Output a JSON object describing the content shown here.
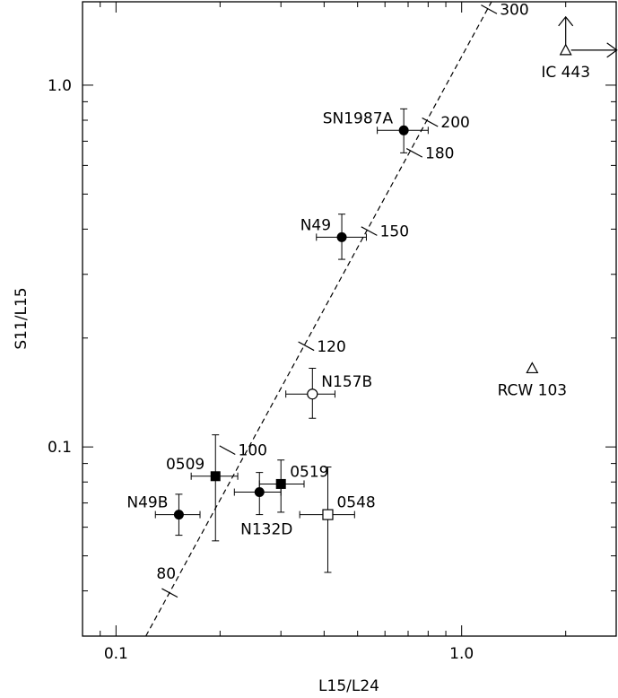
{
  "chart_data": {
    "type": "scatter",
    "title": "",
    "xlabel": "L15/L24",
    "ylabel": "S11/L15",
    "xscale": "log",
    "yscale": "log",
    "xlim": [
      0.08,
      2.8
    ],
    "ylim": [
      0.03,
      1.7
    ],
    "xticklabels": [
      {
        "value": 0.1,
        "label": "0.1"
      },
      {
        "value": 1.0,
        "label": "1.0"
      }
    ],
    "yticklabels": [
      {
        "value": 0.1,
        "label": "0.1"
      },
      {
        "value": 1.0,
        "label": "1.0"
      }
    ],
    "grid": false,
    "legend": "none",
    "points": [
      {
        "label": "SN1987A",
        "x": 0.68,
        "y": 0.75,
        "xlo": 0.57,
        "xhi": 0.8,
        "ylo": 0.65,
        "yhi": 0.86,
        "marker": "filled-circle",
        "label_pos": "left"
      },
      {
        "label": "N49",
        "x": 0.45,
        "y": 0.38,
        "xlo": 0.38,
        "xhi": 0.53,
        "ylo": 0.33,
        "yhi": 0.44,
        "marker": "filled-circle",
        "label_pos": "left"
      },
      {
        "label": "N157B",
        "x": 0.37,
        "y": 0.14,
        "xlo": 0.31,
        "xhi": 0.43,
        "ylo": 0.12,
        "yhi": 0.165,
        "marker": "open-circle",
        "label_pos": "right"
      },
      {
        "label": "0509",
        "x": 0.194,
        "y": 0.083,
        "xlo": 0.165,
        "xhi": 0.225,
        "ylo": 0.055,
        "yhi": 0.108,
        "marker": "filled-square",
        "label_pos": "left"
      },
      {
        "label": "0519",
        "x": 0.3,
        "y": 0.079,
        "xlo": 0.26,
        "xhi": 0.35,
        "ylo": 0.066,
        "yhi": 0.092,
        "marker": "filled-square",
        "label_pos": "right"
      },
      {
        "label": "N132D",
        "x": 0.26,
        "y": 0.075,
        "xlo": 0.22,
        "xhi": 0.3,
        "ylo": 0.065,
        "yhi": 0.085,
        "marker": "filled-circle",
        "label_pos": "below"
      },
      {
        "label": "N49B",
        "x": 0.152,
        "y": 0.065,
        "xlo": 0.13,
        "xhi": 0.175,
        "ylo": 0.057,
        "yhi": 0.074,
        "marker": "filled-circle",
        "label_pos": "left"
      },
      {
        "label": "0548",
        "x": 0.41,
        "y": 0.065,
        "xlo": 0.34,
        "xhi": 0.49,
        "ylo": 0.045,
        "yhi": 0.088,
        "marker": "open-square",
        "label_pos": "right"
      }
    ],
    "lower_limits": [
      {
        "label": "IC 443",
        "x": 2.0,
        "y": 1.25,
        "marker": "open-triangle",
        "arrows": [
          "up",
          "right"
        ]
      },
      {
        "label": "RCW 103",
        "x": 1.6,
        "y": 0.165,
        "marker": "open-triangle",
        "arrows": []
      }
    ],
    "model_curve": {
      "style": "dashed",
      "from": {
        "x": 0.122,
        "y": 0.03
      },
      "to": {
        "x": 1.22,
        "y": 1.7
      },
      "temperature_ticks": [
        {
          "label": "80",
          "x": 0.143,
          "y": 0.0395
        },
        {
          "label": "100",
          "x": 0.21,
          "y": 0.098
        },
        {
          "label": "120",
          "x": 0.355,
          "y": 0.19
        },
        {
          "label": "150",
          "x": 0.54,
          "y": 0.395
        },
        {
          "label": "180",
          "x": 0.73,
          "y": 0.65
        },
        {
          "label": "200",
          "x": 0.81,
          "y": 0.79
        },
        {
          "label": "300",
          "x": 1.2,
          "y": 1.62
        }
      ]
    }
  }
}
